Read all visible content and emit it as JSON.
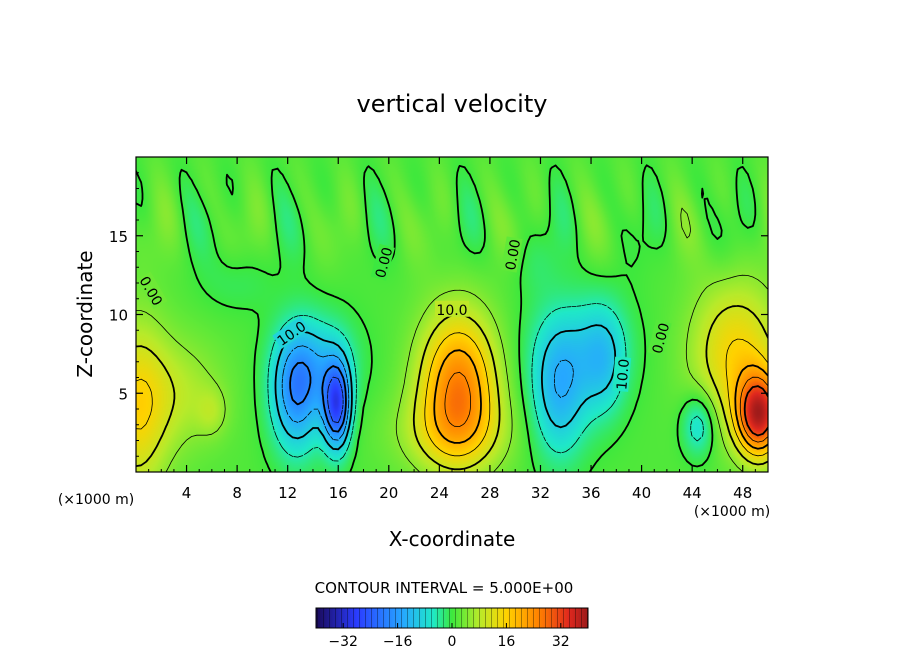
{
  "chart_data": {
    "type": "heatmap",
    "title": "vertical velocity",
    "xlabel": "X-coordinate",
    "ylabel": "Z-coordinate",
    "x_unit_left": "(×1000 m)",
    "x_unit_right": "(×1000 m)",
    "xlim": [
      0,
      50
    ],
    "ylim": [
      0,
      20
    ],
    "x_ticks": [
      4,
      8,
      12,
      16,
      20,
      24,
      28,
      32,
      36,
      40,
      44,
      48
    ],
    "y_ticks": [
      5,
      10,
      15
    ],
    "contour_interval_label": "CONTOUR INTERVAL = 5.000E+00",
    "contour_labels": [
      {
        "text": "0.00",
        "x": 1.2,
        "z": 11.5,
        "rot": 60
      },
      {
        "text": "10.0",
        "x": 12.3,
        "z": 8.8,
        "rot": -35
      },
      {
        "text": "0.00",
        "x": 19.6,
        "z": 13.3,
        "rot": -75
      },
      {
        "text": "10.0",
        "x": 25.0,
        "z": 10.3,
        "rot": 0
      },
      {
        "text": "0.00",
        "x": 29.8,
        "z": 13.8,
        "rot": -80
      },
      {
        "text": "10.0",
        "x": 38.5,
        "z": 6.2,
        "rot": -85
      },
      {
        "text": "0.00",
        "x": 41.5,
        "z": 8.5,
        "rot": -75
      }
    ],
    "colorbar": {
      "min": -40,
      "max": 40,
      "ticks": [
        -32,
        -16,
        0,
        16,
        32
      ]
    },
    "features": [
      {
        "label": "updraft",
        "x": 25.5,
        "z": 5.5,
        "peak": 24
      },
      {
        "label": "updraft",
        "x": 49.0,
        "z": 3.5,
        "peak": 32
      },
      {
        "label": "updraft",
        "x": 0.5,
        "z": 4.0,
        "peak": 14
      },
      {
        "label": "downdraft",
        "x": 16.0,
        "z": 4.0,
        "peak": -28
      },
      {
        "label": "downdraft",
        "x": 12.5,
        "z": 5.0,
        "peak": -18
      },
      {
        "label": "downdraft",
        "x": 33.5,
        "z": 5.0,
        "peak": -14
      },
      {
        "label": "downdraft",
        "x": 37.0,
        "z": 7.0,
        "peak": -10
      },
      {
        "label": "downdraft",
        "x": 44.5,
        "z": 3.0,
        "peak": -10
      }
    ]
  }
}
